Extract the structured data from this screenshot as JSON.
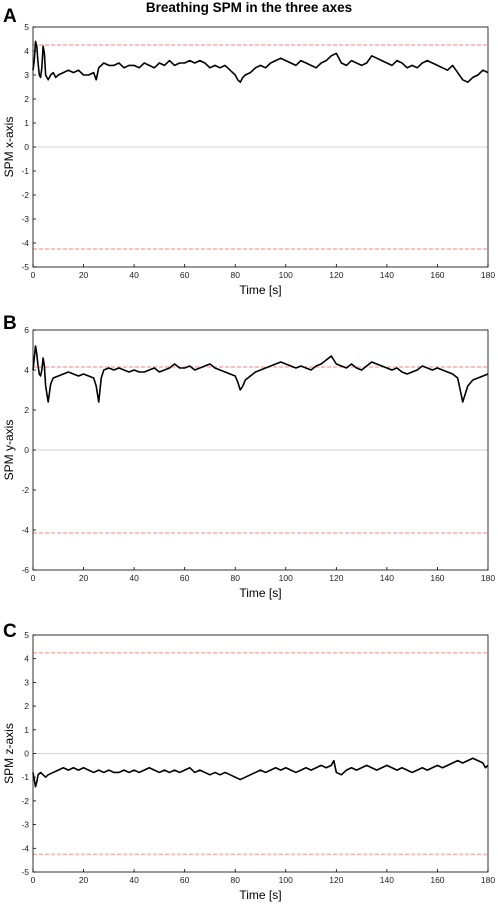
{
  "figure": {
    "title": "Breathing SPM in the three axes"
  },
  "chart_data": [
    {
      "type": "line",
      "panel": "A",
      "xlabel": "Time [s]",
      "ylabel": "SPM x-axis",
      "xlim": [
        0,
        180
      ],
      "ylim": [
        -5,
        5
      ],
      "xticks": [
        0,
        20,
        40,
        60,
        80,
        100,
        120,
        140,
        160,
        180
      ],
      "yticks": [
        5,
        4,
        3,
        2,
        1,
        0,
        -1,
        -2,
        -3,
        -4,
        -5
      ],
      "threshold_upper": 4.25,
      "threshold_lower": -4.25,
      "zero_line": 0,
      "series": [
        {
          "color": "#000000",
          "x": [
            0,
            0.5,
            1,
            1.5,
            2,
            2.5,
            3,
            3.5,
            4,
            4.5,
            5,
            6,
            7,
            8,
            9,
            10,
            12,
            14,
            16,
            18,
            20,
            22,
            24,
            25,
            26,
            28,
            30,
            32,
            34,
            36,
            38,
            40,
            42,
            44,
            46,
            48,
            50,
            52,
            54,
            56,
            58,
            60,
            62,
            64,
            66,
            68,
            70,
            72,
            74,
            76,
            78,
            80,
            81,
            82,
            83,
            84,
            86,
            88,
            90,
            92,
            94,
            96,
            98,
            100,
            102,
            104,
            106,
            108,
            110,
            112,
            114,
            116,
            118,
            120,
            122,
            124,
            126,
            128,
            130,
            132,
            134,
            136,
            138,
            140,
            142,
            144,
            146,
            148,
            150,
            152,
            154,
            156,
            158,
            160,
            162,
            164,
            166,
            168,
            170,
            172,
            174,
            176,
            178,
            180
          ],
          "y": [
            3.2,
            3.6,
            4.4,
            4.2,
            3.5,
            3.0,
            2.9,
            3.3,
            4.2,
            3.9,
            3.0,
            2.8,
            3.0,
            3.1,
            2.9,
            3.0,
            3.1,
            3.2,
            3.1,
            3.2,
            3.0,
            3.0,
            3.1,
            2.8,
            3.3,
            3.5,
            3.4,
            3.4,
            3.5,
            3.3,
            3.4,
            3.4,
            3.3,
            3.5,
            3.4,
            3.3,
            3.5,
            3.4,
            3.6,
            3.4,
            3.5,
            3.5,
            3.6,
            3.5,
            3.6,
            3.5,
            3.3,
            3.4,
            3.3,
            3.4,
            3.2,
            3.0,
            2.8,
            2.7,
            2.9,
            3.0,
            3.1,
            3.3,
            3.4,
            3.3,
            3.5,
            3.6,
            3.7,
            3.6,
            3.5,
            3.4,
            3.6,
            3.5,
            3.4,
            3.3,
            3.5,
            3.6,
            3.8,
            3.9,
            3.5,
            3.4,
            3.6,
            3.5,
            3.4,
            3.5,
            3.8,
            3.7,
            3.6,
            3.5,
            3.4,
            3.6,
            3.5,
            3.3,
            3.4,
            3.3,
            3.5,
            3.6,
            3.5,
            3.4,
            3.3,
            3.2,
            3.4,
            3.1,
            2.8,
            2.7,
            2.9,
            3.0,
            3.2,
            3.1
          ]
        }
      ]
    },
    {
      "type": "line",
      "panel": "B",
      "xlabel": "Time [s]",
      "ylabel": "SPM y-axis",
      "xlim": [
        0,
        180
      ],
      "ylim": [
        -6,
        6
      ],
      "xticks": [
        0,
        20,
        40,
        60,
        80,
        100,
        120,
        140,
        160,
        180
      ],
      "yticks": [
        6,
        4,
        2,
        0,
        -2,
        -4,
        -6
      ],
      "threshold_upper": 4.15,
      "threshold_lower": -4.15,
      "zero_line": 0,
      "series": [
        {
          "color": "#000000",
          "x": [
            0,
            0.5,
            1,
            1.5,
            2,
            2.5,
            3,
            3.5,
            4,
            4.5,
            5,
            6,
            7,
            8,
            10,
            12,
            14,
            16,
            18,
            20,
            22,
            24,
            25,
            26,
            27,
            28,
            30,
            32,
            34,
            36,
            38,
            40,
            42,
            44,
            46,
            48,
            50,
            52,
            54,
            56,
            58,
            60,
            62,
            64,
            66,
            68,
            70,
            72,
            74,
            76,
            78,
            80,
            81,
            82,
            83,
            84,
            86,
            88,
            90,
            92,
            94,
            96,
            98,
            100,
            102,
            104,
            106,
            108,
            110,
            112,
            114,
            116,
            118,
            120,
            122,
            124,
            126,
            128,
            130,
            132,
            134,
            136,
            138,
            140,
            142,
            144,
            146,
            148,
            150,
            152,
            154,
            156,
            158,
            160,
            162,
            164,
            166,
            168,
            169,
            170,
            171,
            172,
            174,
            176,
            178,
            180
          ],
          "y": [
            4.0,
            4.6,
            5.2,
            4.8,
            4.2,
            3.8,
            3.7,
            4.0,
            4.6,
            4.2,
            3.2,
            2.4,
            3.3,
            3.6,
            3.7,
            3.8,
            3.9,
            3.8,
            3.7,
            3.8,
            3.7,
            3.6,
            3.2,
            2.4,
            3.6,
            4.0,
            4.1,
            4.0,
            4.1,
            4.0,
            3.9,
            4.0,
            3.9,
            3.9,
            4.0,
            4.1,
            3.9,
            4.0,
            4.1,
            4.3,
            4.1,
            4.1,
            4.2,
            4.0,
            4.1,
            4.2,
            4.3,
            4.1,
            4.0,
            3.9,
            3.8,
            3.7,
            3.4,
            3.0,
            3.2,
            3.5,
            3.7,
            3.9,
            4.0,
            4.1,
            4.2,
            4.3,
            4.4,
            4.3,
            4.2,
            4.1,
            4.2,
            4.1,
            4.0,
            4.2,
            4.3,
            4.5,
            4.7,
            4.3,
            4.2,
            4.1,
            4.3,
            4.1,
            4.0,
            4.2,
            4.4,
            4.3,
            4.2,
            4.1,
            4.0,
            4.1,
            3.9,
            3.8,
            3.9,
            4.0,
            4.2,
            4.1,
            4.0,
            4.1,
            4.0,
            3.9,
            3.8,
            3.6,
            3.0,
            2.4,
            2.8,
            3.2,
            3.5,
            3.6,
            3.7,
            3.8
          ]
        }
      ]
    },
    {
      "type": "line",
      "panel": "C",
      "xlabel": "Time [s]",
      "ylabel": "SPM z-axis",
      "xlim": [
        0,
        180
      ],
      "ylim": [
        -5,
        5
      ],
      "xticks": [
        0,
        20,
        40,
        60,
        80,
        100,
        120,
        140,
        160,
        180
      ],
      "yticks": [
        5,
        4,
        3,
        2,
        1,
        0,
        -1,
        -2,
        -3,
        -4,
        -5
      ],
      "threshold_upper": 4.25,
      "threshold_lower": -4.25,
      "zero_line": 0,
      "series": [
        {
          "color": "#000000",
          "x": [
            0,
            0.5,
            1,
            1.5,
            2,
            3,
            4,
            5,
            6,
            8,
            10,
            12,
            14,
            16,
            18,
            20,
            22,
            24,
            26,
            28,
            30,
            32,
            34,
            36,
            38,
            40,
            42,
            44,
            46,
            48,
            50,
            52,
            54,
            56,
            58,
            60,
            62,
            64,
            66,
            68,
            70,
            72,
            74,
            76,
            78,
            80,
            82,
            84,
            86,
            88,
            90,
            92,
            94,
            96,
            98,
            100,
            102,
            104,
            106,
            108,
            110,
            112,
            114,
            116,
            118,
            119,
            120,
            122,
            124,
            126,
            128,
            130,
            132,
            134,
            136,
            138,
            140,
            142,
            144,
            146,
            148,
            150,
            152,
            154,
            156,
            158,
            160,
            162,
            164,
            166,
            168,
            170,
            172,
            174,
            176,
            178,
            179,
            180
          ],
          "y": [
            -0.8,
            -1.1,
            -1.4,
            -1.2,
            -0.9,
            -0.8,
            -0.9,
            -1.0,
            -0.9,
            -0.8,
            -0.7,
            -0.6,
            -0.7,
            -0.6,
            -0.7,
            -0.6,
            -0.7,
            -0.8,
            -0.7,
            -0.8,
            -0.7,
            -0.8,
            -0.8,
            -0.7,
            -0.8,
            -0.7,
            -0.8,
            -0.7,
            -0.6,
            -0.7,
            -0.8,
            -0.7,
            -0.8,
            -0.7,
            -0.8,
            -0.7,
            -0.6,
            -0.8,
            -0.7,
            -0.8,
            -0.9,
            -0.8,
            -0.9,
            -0.8,
            -0.9,
            -1.0,
            -1.1,
            -1.0,
            -0.9,
            -0.8,
            -0.7,
            -0.8,
            -0.7,
            -0.6,
            -0.7,
            -0.6,
            -0.7,
            -0.8,
            -0.7,
            -0.6,
            -0.7,
            -0.6,
            -0.5,
            -0.6,
            -0.5,
            -0.3,
            -0.8,
            -0.9,
            -0.7,
            -0.6,
            -0.7,
            -0.6,
            -0.5,
            -0.6,
            -0.7,
            -0.6,
            -0.5,
            -0.6,
            -0.7,
            -0.6,
            -0.7,
            -0.8,
            -0.7,
            -0.6,
            -0.7,
            -0.6,
            -0.5,
            -0.6,
            -0.5,
            -0.4,
            -0.3,
            -0.4,
            -0.3,
            -0.2,
            -0.3,
            -0.4,
            -0.6,
            -0.5
          ]
        }
      ]
    }
  ]
}
